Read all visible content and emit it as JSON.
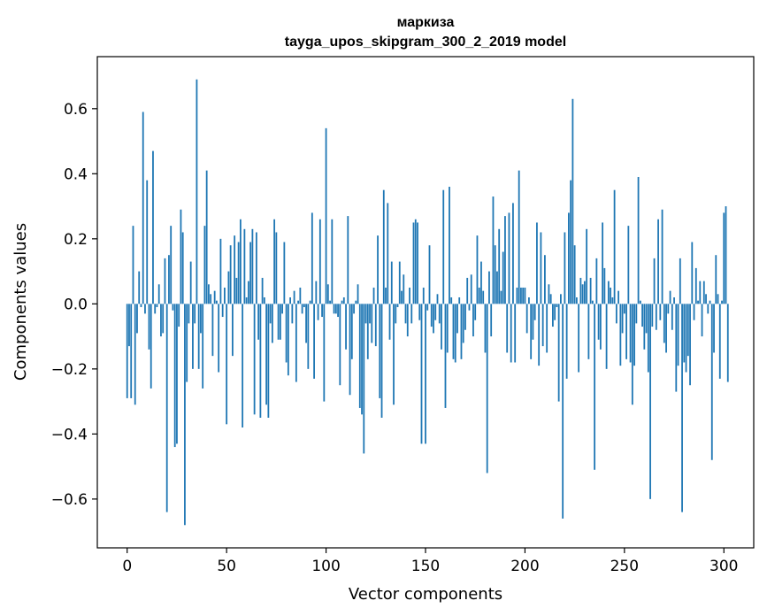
{
  "chart_data": {
    "type": "bar",
    "title": [
      "маркиза",
      "tayga_upos_skipgram_300_2_2019 model"
    ],
    "xlabel": "Vector components",
    "ylabel": "Components values",
    "xlim": [
      -15,
      315
    ],
    "ylim": [
      -0.75,
      0.76
    ],
    "xticks": [
      0,
      50,
      100,
      150,
      200,
      250,
      300
    ],
    "xtick_labels": [
      "0",
      "50",
      "100",
      "150",
      "200",
      "250",
      "300"
    ],
    "yticks": [
      -0.6,
      -0.4,
      -0.2,
      0.0,
      0.2,
      0.4,
      0.6
    ],
    "ytick_labels": [
      "−0.6",
      "−0.4",
      "−0.2",
      "0.0",
      "0.2",
      "0.4",
      "0.6"
    ],
    "bar_color": "#1f77b4",
    "grid": false,
    "values": [
      -0.29,
      -0.13,
      -0.29,
      0.24,
      -0.31,
      -0.09,
      0.1,
      -0.01,
      0.59,
      -0.03,
      0.38,
      -0.14,
      -0.26,
      0.47,
      -0.03,
      -0.01,
      0.06,
      -0.1,
      -0.09,
      0.14,
      -0.64,
      0.15,
      0.24,
      -0.02,
      -0.44,
      -0.43,
      -0.07,
      0.29,
      0.22,
      -0.68,
      -0.24,
      -0.06,
      0.13,
      -0.2,
      -0.06,
      0.69,
      -0.2,
      -0.09,
      -0.26,
      0.24,
      0.41,
      0.06,
      0.03,
      -0.16,
      0.04,
      0.01,
      -0.21,
      0.2,
      -0.04,
      0.05,
      -0.37,
      0.1,
      0.18,
      -0.16,
      0.21,
      0.08,
      0.19,
      0.26,
      -0.38,
      0.23,
      0.02,
      0.07,
      0.19,
      0.23,
      -0.34,
      0.22,
      -0.11,
      -0.35,
      0.08,
      0.02,
      -0.31,
      -0.35,
      -0.06,
      -0.12,
      0.26,
      0.22,
      -0.11,
      -0.11,
      -0.03,
      0.19,
      -0.18,
      -0.22,
      0.02,
      -0.06,
      0.04,
      -0.24,
      0.01,
      0.05,
      -0.03,
      -0.01,
      -0.12,
      -0.2,
      0.01,
      0.28,
      -0.23,
      0.07,
      -0.05,
      0.26,
      -0.04,
      -0.3,
      0.54,
      0.06,
      0.01,
      0.26,
      -0.03,
      -0.03,
      -0.04,
      -0.25,
      0.01,
      0.02,
      -0.14,
      0.27,
      -0.28,
      -0.17,
      -0.03,
      0.01,
      0.06,
      -0.32,
      -0.34,
      -0.46,
      -0.06,
      -0.17,
      -0.06,
      -0.12,
      0.05,
      -0.13,
      0.21,
      -0.29,
      -0.35,
      0.35,
      0.05,
      0.31,
      -0.11,
      0.13,
      -0.31,
      -0.06,
      -0.01,
      0.13,
      0.04,
      0.09,
      -0.06,
      -0.1,
      0.05,
      -0.06,
      0.25,
      0.26,
      0.25,
      -0.05,
      -0.43,
      0.05,
      -0.43,
      -0.02,
      0.18,
      -0.07,
      -0.09,
      -0.05,
      0.03,
      -0.06,
      -0.14,
      0.35,
      -0.32,
      -0.15,
      0.36,
      0.02,
      -0.17,
      -0.18,
      -0.09,
      0.02,
      -0.17,
      -0.12,
      -0.08,
      0.08,
      -0.02,
      0.09,
      -0.1,
      -0.05,
      0.21,
      0.05,
      0.13,
      0.04,
      -0.15,
      -0.52,
      0.1,
      -0.1,
      0.33,
      0.18,
      0.1,
      0.23,
      0.04,
      0.16,
      0.27,
      -0.15,
      0.28,
      -0.18,
      0.31,
      -0.18,
      0.05,
      0.41,
      0.05,
      0.05,
      0.05,
      -0.09,
      0.02,
      -0.17,
      -0.11,
      -0.05,
      0.25,
      -0.19,
      0.22,
      -0.13,
      0.15,
      -0.15,
      0.06,
      0.03,
      -0.07,
      -0.05,
      -0.01,
      -0.3,
      0.03,
      -0.66,
      0.22,
      -0.23,
      0.28,
      0.38,
      0.63,
      0.18,
      0.02,
      -0.21,
      0.08,
      0.06,
      0.07,
      0.23,
      -0.17,
      0.08,
      0.01,
      -0.51,
      0.14,
      -0.11,
      -0.14,
      0.25,
      0.11,
      -0.2,
      0.07,
      0.05,
      0.02,
      0.35,
      -0.06,
      0.04,
      -0.19,
      -0.09,
      -0.03,
      -0.17,
      0.24,
      -0.18,
      -0.31,
      -0.19,
      -0.06,
      0.39,
      0.01,
      -0.07,
      -0.14,
      -0.09,
      -0.21,
      -0.6,
      -0.07,
      0.14,
      -0.08,
      0.26,
      -0.05,
      0.29,
      -0.12,
      -0.15,
      -0.03,
      0.04,
      -0.08,
      0.02,
      -0.27,
      -0.19,
      0.14,
      -0.64,
      -0.18,
      -0.21,
      -0.16,
      -0.25,
      0.19,
      -0.05,
      0.11,
      0.01,
      0.07,
      -0.1,
      0.07,
      0.03,
      -0.03,
      0.01,
      -0.48,
      -0.15,
      0.15,
      0.03,
      -0.23,
      0.01,
      0.28,
      0.3,
      -0.24
    ]
  }
}
